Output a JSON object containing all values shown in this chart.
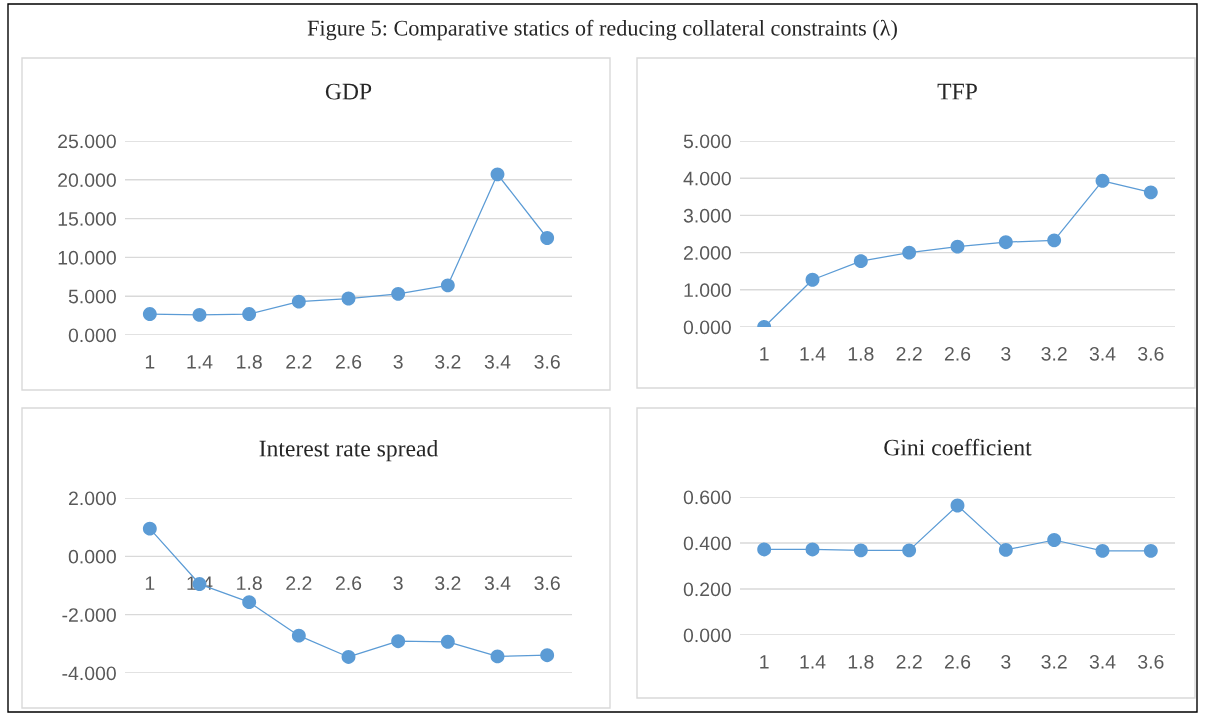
{
  "chart_data": [
    {
      "type": "line",
      "title": "GDP",
      "annotations": [
        "Figure 5: Comparative statics of reducing collateral constraints (λ)"
      ],
      "categories": [
        "1",
        "1.4",
        "1.8",
        "2.2",
        "2.6",
        "3",
        "3.2",
        "3.4",
        "3.6"
      ],
      "series": [
        {
          "color": "#5b9bd5",
          "values": [
            2.7,
            2.6,
            2.7,
            4.3,
            4.7,
            5.3,
            6.4,
            20.7,
            12.5
          ]
        }
      ],
      "ylim": [
        0,
        25
      ],
      "yticks": [
        {
          "value": 0,
          "label": "0.000"
        },
        {
          "value": 5,
          "label": "5.000"
        },
        {
          "value": 10,
          "label": "10.000"
        },
        {
          "value": 15,
          "label": "15.000"
        },
        {
          "value": 20,
          "label": "20.000"
        },
        {
          "value": 25,
          "label": "25.000"
        }
      ],
      "grid": "y",
      "marker": "circle",
      "line_style": "solid"
    },
    {
      "type": "line",
      "title": "TFP",
      "categories": [
        "1",
        "1.4",
        "1.8",
        "2.2",
        "2.6",
        "3",
        "3.2",
        "3.4",
        "3.6"
      ],
      "series": [
        {
          "color": "#5b9bd5",
          "values": [
            0.0,
            1.27,
            1.77,
            2.0,
            2.16,
            2.28,
            2.33,
            3.93,
            3.62
          ]
        }
      ],
      "ylim": [
        0,
        5
      ],
      "yticks": [
        {
          "value": 0,
          "label": "0.000"
        },
        {
          "value": 1,
          "label": "1.000"
        },
        {
          "value": 2,
          "label": "2.000"
        },
        {
          "value": 3,
          "label": "3.000"
        },
        {
          "value": 4,
          "label": "4.000"
        },
        {
          "value": 5,
          "label": "5.000"
        }
      ],
      "grid": "y",
      "marker": "circle",
      "line_style": "solid"
    },
    {
      "type": "line",
      "title": "Interest rate spread",
      "categories": [
        "1",
        "1.4",
        "1.8",
        "2.2",
        "2.6",
        "3",
        "3.2",
        "3.4",
        "3.6"
      ],
      "series": [
        {
          "color": "#5b9bd5",
          "values": [
            0.95,
            -0.95,
            -1.57,
            -2.72,
            -3.45,
            -2.91,
            -2.93,
            -3.43,
            -3.39
          ]
        }
      ],
      "ylim": [
        -4,
        2
      ],
      "yticks": [
        {
          "value": -4,
          "label": "-4.000"
        },
        {
          "value": -2,
          "label": "-2.000"
        },
        {
          "value": 0,
          "label": "0.000"
        },
        {
          "value": 2,
          "label": "2.000"
        }
      ],
      "grid": "y",
      "marker": "circle",
      "line_style": "solid"
    },
    {
      "type": "line",
      "title": "Gini coefficient",
      "categories": [
        "1",
        "1.4",
        "1.8",
        "2.2",
        "2.6",
        "3",
        "3.2",
        "3.4",
        "3.6"
      ],
      "series": [
        {
          "color": "#5b9bd5",
          "values": [
            0.372,
            0.372,
            0.368,
            0.368,
            0.563,
            0.37,
            0.413,
            0.366,
            0.366
          ]
        }
      ],
      "ylim": [
        0,
        0.6
      ],
      "yticks": [
        {
          "value": 0,
          "label": "0.000"
        },
        {
          "value": 0.2,
          "label": "0.200"
        },
        {
          "value": 0.4,
          "label": "0.400"
        },
        {
          "value": 0.6,
          "label": "0.600"
        }
      ],
      "grid": "y",
      "marker": "circle",
      "line_style": "solid"
    }
  ]
}
